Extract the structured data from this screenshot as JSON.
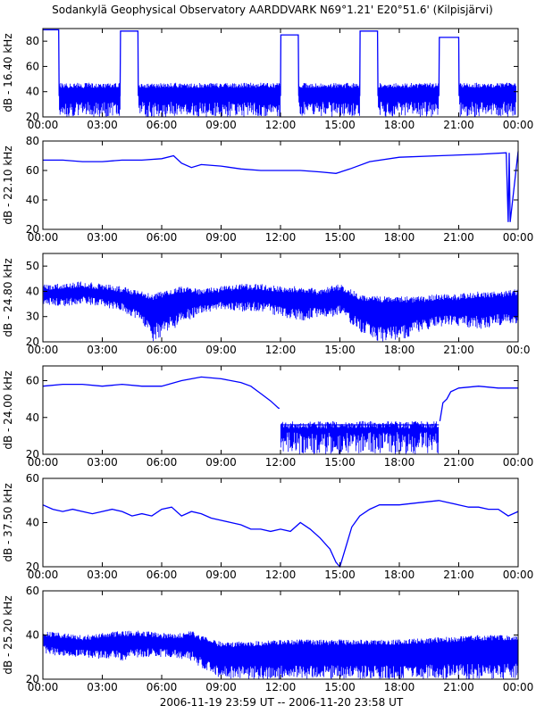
{
  "title": "Sodankylä Geophysical Observatory AARDDVARK N69°1.21' E20°51.6' (Kilpisjärvi)",
  "footer": "2006-11-19 23:59 UT -- 2006-11-20 23:58 UT",
  "colors": {
    "trace": "#0000ff",
    "axis": "#000000",
    "background": "#ffffff"
  },
  "chart_data": [
    {
      "type": "line",
      "ylabel": "dB - 16.40 kHz",
      "ylim": [
        20,
        90
      ],
      "yticks": [
        "20",
        "40",
        "60",
        "80"
      ],
      "xlim": [
        0,
        24
      ],
      "xticks": [
        "00:00",
        "03:00",
        "06:00",
        "09:00",
        "12:00",
        "15:00",
        "18:00",
        "21:00",
        "00:00"
      ],
      "grid": false,
      "series": [
        {
          "noise_band": [
            20,
            47
          ],
          "x": [
            0,
            0.8,
            0.82,
            3.9,
            3.92,
            4.8,
            4.82,
            12.0,
            12.02,
            12.9,
            12.92,
            16.0,
            16.02,
            16.9,
            16.92,
            20.0,
            20.02,
            21.0,
            21.02,
            23.9
          ],
          "y": [
            89,
            89,
            37,
            37,
            88,
            88,
            37,
            37,
            85,
            85,
            37,
            37,
            88,
            88,
            37,
            37,
            83,
            83,
            37,
            37
          ]
        }
      ]
    },
    {
      "type": "line",
      "ylabel": "dB - 22.10 kHz",
      "ylim": [
        20,
        80
      ],
      "yticks": [
        "20",
        "40",
        "60",
        "80"
      ],
      "xlim": [
        0,
        24
      ],
      "xticks": [
        "00:00",
        "03:00",
        "06:00",
        "09:00",
        "12:00",
        "15:00",
        "18:00",
        "21:00",
        "00:00"
      ],
      "grid": false,
      "series": [
        {
          "x": [
            0,
            1,
            2,
            3,
            4,
            5,
            6,
            6.6,
            7,
            7.5,
            8,
            9,
            10,
            11,
            12,
            13,
            14,
            14.8,
            15.5,
            16.5,
            18,
            20,
            22,
            23.4,
            23.5,
            23.55,
            23.6,
            24
          ],
          "y": [
            67,
            67,
            66,
            66,
            67,
            67,
            68,
            70,
            65,
            62,
            64,
            63,
            61,
            60,
            60,
            60,
            59,
            58,
            61,
            66,
            69,
            70,
            71,
            72,
            25,
            72,
            25,
            73
          ]
        }
      ]
    },
    {
      "type": "line",
      "ylabel": "dB - 24.80 kHz",
      "ylim": [
        20,
        55
      ],
      "yticks": [
        "20",
        "30",
        "40",
        "50"
      ],
      "xlim": [
        0,
        24
      ],
      "xticks": [
        "00:00",
        "03:00",
        "06:00",
        "09:00",
        "12:00",
        "15:00",
        "18:00",
        "21:00",
        "00:0"
      ],
      "grid": false,
      "series": [
        {
          "x": [
            0,
            1,
            2,
            3,
            4,
            5,
            5.5,
            6,
            7,
            8,
            9,
            10,
            11,
            12,
            13,
            14,
            14.5,
            15,
            16,
            17,
            18,
            19,
            20,
            21,
            22,
            23,
            24
          ],
          "upper": [
            43,
            43,
            44,
            43,
            42,
            40,
            39,
            40,
            42,
            41,
            42,
            43,
            43,
            42,
            42,
            41,
            42,
            43,
            39,
            38,
            38,
            38,
            39,
            39,
            40,
            40,
            41
          ],
          "lower": [
            35,
            34,
            35,
            34,
            32,
            28,
            20,
            22,
            27,
            31,
            33,
            32,
            32,
            30,
            28,
            30,
            29,
            31,
            24,
            20,
            20,
            24,
            26,
            26,
            25,
            26,
            27
          ]
        }
      ]
    },
    {
      "type": "line",
      "ylabel": "dB - 24.00 kHz",
      "ylim": [
        20,
        68
      ],
      "yticks": [
        "20",
        "40",
        "60"
      ],
      "xlim": [
        0,
        24
      ],
      "xticks": [
        "00:00",
        "03:00",
        "06:00",
        "09:00",
        "12:00",
        "15:00",
        "18:00",
        "21:00",
        "00:00"
      ],
      "grid": false,
      "series": [
        {
          "x": [
            0,
            1,
            2,
            3,
            4,
            5,
            6,
            7,
            8,
            9,
            10,
            10.5,
            11,
            11.5,
            11.9,
            11.95
          ],
          "y": [
            57,
            58,
            58,
            57,
            58,
            57,
            57,
            60,
            62,
            61,
            59,
            57,
            53,
            49,
            45,
            45
          ]
        },
        {
          "noise_band": [
            20,
            38
          ],
          "x": [
            12.0,
            20.0
          ],
          "y": [
            36,
            36
          ]
        },
        {
          "x": [
            20.05,
            20.2,
            20.4,
            20.6,
            21,
            22,
            23,
            24
          ],
          "y": [
            38,
            48,
            50,
            54,
            56,
            57,
            56,
            56
          ]
        }
      ]
    },
    {
      "type": "line",
      "ylabel": "dB - 37.50 kHz",
      "ylim": [
        20,
        60
      ],
      "yticks": [
        "20",
        "40",
        "60"
      ],
      "xlim": [
        0,
        24
      ],
      "xticks": [
        "00:00",
        "03:00",
        "06:00",
        "09:00",
        "12:00",
        "15:00",
        "18:00",
        "21:00",
        "00:00"
      ],
      "grid": false,
      "series": [
        {
          "x": [
            0,
            0.5,
            1,
            1.5,
            2,
            2.5,
            3,
            3.5,
            4,
            4.5,
            5,
            5.5,
            6,
            6.5,
            7,
            7.5,
            8,
            8.5,
            9,
            9.5,
            10,
            10.5,
            11,
            11.5,
            12,
            12.5,
            13,
            13.5,
            14,
            14.5,
            14.8,
            15.0,
            15.3,
            15.6,
            16,
            16.5,
            17,
            18,
            19,
            20,
            20.5,
            21,
            21.5,
            22,
            22.5,
            23,
            23.5,
            24
          ],
          "y": [
            48,
            46,
            45,
            46,
            45,
            44,
            45,
            46,
            45,
            43,
            44,
            43,
            46,
            47,
            43,
            45,
            44,
            42,
            41,
            40,
            39,
            37,
            37,
            36,
            37,
            36,
            40,
            37,
            33,
            28,
            22,
            20,
            29,
            38,
            43,
            46,
            48,
            48,
            49,
            50,
            49,
            48,
            47,
            47,
            46,
            46,
            43,
            45
          ]
        }
      ]
    },
    {
      "type": "line",
      "ylabel": "dB - 25.20 kHz",
      "ylim": [
        20,
        60
      ],
      "yticks": [
        "20",
        "40",
        "60"
      ],
      "xlim": [
        0,
        24
      ],
      "xticks": [
        "00:00",
        "03:00",
        "06:00",
        "09:00",
        "12:00",
        "15:00",
        "18:00",
        "21:00",
        "00:00"
      ],
      "grid": false,
      "series": [
        {
          "x": [
            0,
            1,
            2,
            3,
            4,
            5,
            6,
            7,
            7.5,
            8,
            8.5,
            9,
            10,
            12,
            14,
            16,
            18,
            20,
            22,
            24
          ],
          "upper": [
            42,
            41,
            40,
            41,
            42,
            42,
            41,
            41,
            42,
            40,
            38,
            37,
            37,
            38,
            38,
            38,
            38,
            39,
            40,
            40
          ],
          "lower": [
            32,
            30,
            30,
            29,
            28,
            30,
            30,
            29,
            28,
            25,
            22,
            20,
            20,
            20,
            20,
            20,
            20,
            20,
            20,
            20
          ]
        }
      ]
    }
  ]
}
